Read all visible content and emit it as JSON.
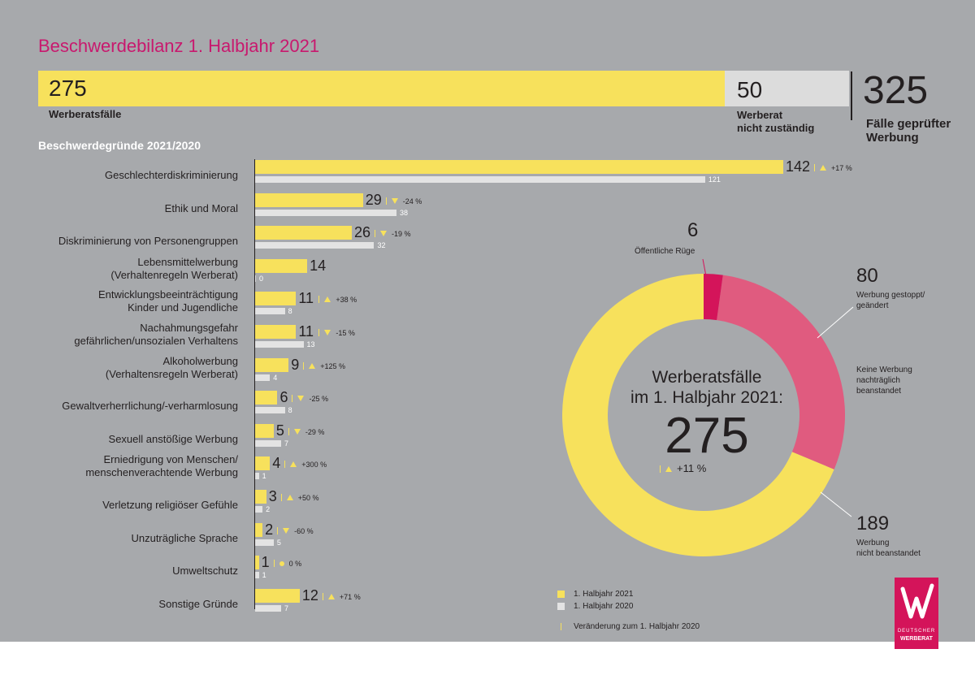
{
  "title": "Beschwerdebilanz 1. Halbjahr 2021",
  "totals": {
    "werberat_value": "275",
    "werberat_label": "Werberatsfälle",
    "nicht_value": "50",
    "nicht_label_1": "Werberat",
    "nicht_label_2": "nicht zuständig",
    "gesamt_value": "325",
    "gesamt_label_1": "Fälle geprüfter",
    "gesamt_label_2": "Werbung"
  },
  "section_title": "Beschwerdegründe 2021/2020",
  "chart_data": [
    {
      "type": "bar",
      "title": "Beschwerdegründe 2021/2020",
      "categories": [
        [
          "Geschlechterdiskriminierung"
        ],
        [
          "Ethik und Moral"
        ],
        [
          "Diskriminierung von Personengruppen"
        ],
        [
          "Lebensmittelwerbung",
          "(Verhaltenregeln Werberat)"
        ],
        [
          "Entwicklungsbeeinträchtigung",
          "Kinder und Jugendliche"
        ],
        [
          "Nachahmungsgefahr",
          "gefährlichen/unsozialen Verhaltens"
        ],
        [
          "Alkoholwerbung",
          "(Verhaltensregeln Werberat)"
        ],
        [
          "Gewaltverherrlichung/-verharmlosung"
        ],
        [
          "Sexuell anstößige Werbung"
        ],
        [
          "Erniedrigung von Menschen/",
          "menschenverachtende Werbung"
        ],
        [
          "Verletzung religiöser Gefühle"
        ],
        [
          "Unzuträgliche Sprache"
        ],
        [
          "Umweltschutz"
        ],
        [
          "Sonstige Gründe"
        ]
      ],
      "series": [
        {
          "name": "1. Halbjahr 2021",
          "color": "#f7e15c",
          "values": [
            142,
            29,
            26,
            14,
            11,
            11,
            9,
            6,
            5,
            4,
            3,
            2,
            1,
            12
          ]
        },
        {
          "name": "1. Halbjahr 2020",
          "color": "#e3e3e3",
          "values": [
            121,
            38,
            32,
            0,
            8,
            13,
            4,
            8,
            7,
            1,
            2,
            5,
            1,
            7
          ]
        }
      ],
      "changes": [
        "+17 %",
        "-24 %",
        "-19 %",
        "",
        "+38 %",
        "-15 %",
        "+125 %",
        "-25 %",
        "-29 %",
        "+300 %",
        "+50 %",
        "-60 %",
        "0 %",
        "+71 %"
      ],
      "change_dir": [
        "up",
        "down",
        "down",
        "",
        "up",
        "down",
        "up",
        "down",
        "down",
        "up",
        "up",
        "down",
        "flat",
        "up"
      ]
    },
    {
      "type": "pie",
      "center_title_1": "Werberatsfälle",
      "center_title_2": "im 1. Halbjahr 2021:",
      "center_value": "275",
      "center_change": "+11 %",
      "slices": [
        {
          "value": 6,
          "label": "Öffentliche Rüge",
          "color": "#d4145a"
        },
        {
          "value": 80,
          "label_1": "Werbung gestoppt/",
          "label_2": "geändert",
          "color": "#e05b7f"
        },
        {
          "value": 189,
          "label_1": "Werbung",
          "label_2": "nicht beanstandet",
          "color": "#f7e15c"
        }
      ],
      "note_1": "Keine Werbung",
      "note_2": "nachträglich",
      "note_3": "beanstandet"
    }
  ],
  "legend": {
    "item_2021": "1. Halbjahr 2021",
    "item_2020": "1. Halbjahr 2020",
    "item_change": "Veränderung zum 1. Halbjahr 2020",
    "color_2021": "#f7e15c",
    "color_2020": "#e3e3e3"
  },
  "logo": {
    "text_1": "DEUTSCHER",
    "text_2": "WERBERAT",
    "color": "#d4145a"
  }
}
